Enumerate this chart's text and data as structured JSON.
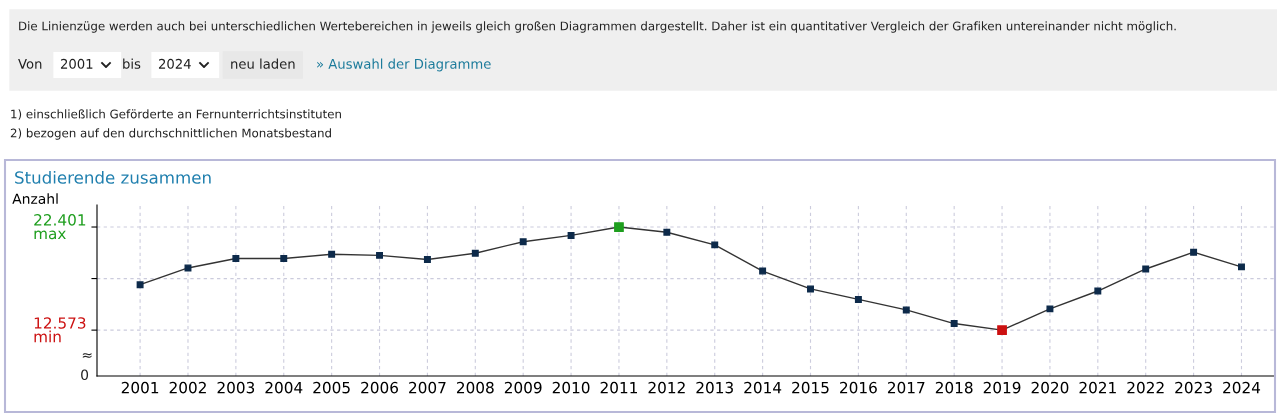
{
  "chart_data": {
    "type": "line",
    "title": "Studierende zusammen",
    "ylabel": "Anzahl",
    "categories": [
      "2001",
      "2002",
      "2003",
      "2004",
      "2005",
      "2006",
      "2007",
      "2008",
      "2009",
      "2010",
      "2011",
      "2012",
      "2013",
      "2014",
      "2015",
      "2016",
      "2017",
      "2018",
      "2019",
      "2020",
      "2021",
      "2022",
      "2023",
      "2024"
    ],
    "series": [
      {
        "color": "#333333",
        "values": [
          16900,
          18500,
          19400,
          19400,
          19800,
          19700,
          19300,
          19900,
          21000,
          21600,
          22401,
          21900,
          20700,
          18200,
          16500,
          15500,
          14500,
          13200,
          12573,
          14600,
          16300,
          18400,
          20000,
          18600
        ],
        "colors": [
          "#0d2a4a",
          "#0d2a4a",
          "#0d2a4a",
          "#0d2a4a",
          "#0d2a4a",
          "#0d2a4a",
          "#0d2a4a",
          "#0d2a4a",
          "#0d2a4a",
          "#0d2a4a",
          "#1e9e1e",
          "#0d2a4a",
          "#0d2a4a",
          "#0d2a4a",
          "#0d2a4a",
          "#0d2a4a",
          "#0d2a4a",
          "#0d2a4a",
          "#cc1111",
          "#0d2a4a",
          "#0d2a4a",
          "#0d2a4a",
          "#0d2a4a",
          "#0d2a4a"
        ]
      }
    ],
    "ylim": [
      8200,
      24500
    ],
    "yticks": [
      {
        "value": 12573,
        "label": "12.573\nmin"
      },
      {
        "value": 17487,
        "label": null
      },
      {
        "value": 22401,
        "label": "22.401\nmax"
      }
    ],
    "grid": true,
    "marker": "square",
    "line_style": "solid",
    "annotations": [
      "Die Linienzüge werden auch bei unterschiedlichen Wertebereichen in jeweils gleich großen Diagrammen dargestellt. Daher ist ein quantitativer Vergleich der Grafiken untereinander nicht möglich.",
      "Von",
      "2001",
      "bis",
      "2024",
      "neu laden",
      "» Auswahl der Diagramme",
      "1) einschließlich Geförderte an Fernunterrichtsinstituten",
      "2) bezogen auf den durchschnittlichen Monatsbestand",
      "≈",
      "0"
    ]
  }
}
